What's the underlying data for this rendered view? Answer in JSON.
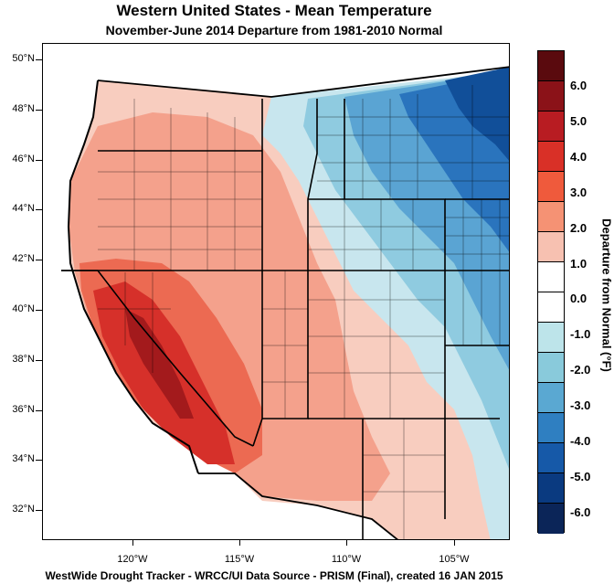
{
  "title": "Western United States - Mean Temperature",
  "subtitle": "November-June 2014  Departure from 1981-2010 Normal",
  "footer": "WestWide Drought Tracker - WRCC/UI  Data Source - PRISM (Final), created 16 JAN 2015",
  "map": {
    "lat_labels": [
      "50°N",
      "48°N",
      "46°N",
      "44°N",
      "42°N",
      "40°N",
      "38°N",
      "36°N",
      "34°N",
      "32°N"
    ],
    "lon_labels": [
      "120°W",
      "115°W",
      "110°W",
      "105°W"
    ]
  },
  "colorbar": {
    "title": "Departure from Normal (°F)",
    "labels": [
      "6.0",
      "5.0",
      "4.0",
      "3.0",
      "2.0",
      "1.0",
      "0.0",
      "-1.0",
      "-2.0",
      "-3.0",
      "-4.0",
      "-5.0",
      "-6.0"
    ],
    "colors": [
      "#5a0a0e",
      "#8b1218",
      "#b81c22",
      "#d93027",
      "#ef5a3c",
      "#f59274",
      "#f7c1b1",
      "#ffffff",
      "#ffffff",
      "#bde4ea",
      "#89cadb",
      "#5aa8d2",
      "#2f7fc1",
      "#1659a8",
      "#0a3a80",
      "#0b2558"
    ]
  },
  "regions": {
    "warm_deep": "#a31a1c",
    "warm_strong": "#d6302a",
    "warm_mid": "#ec6a52",
    "warm_light": "#f4a18c",
    "warm_pale": "#f8cdbf",
    "cool_pale": "#c8e6ee",
    "cool_light": "#8fcbe0",
    "cool_mid": "#5aa4d3",
    "cool_strong": "#2a74bd",
    "cool_deep": "#114f99"
  }
}
